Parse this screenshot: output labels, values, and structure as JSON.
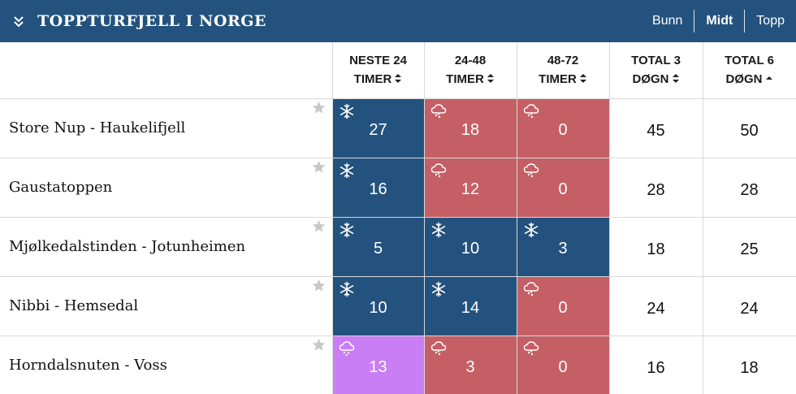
{
  "header": {
    "title": "TOPPTURFJELL I NORGE",
    "nav": [
      "Bunn",
      "Midt",
      "Topp"
    ],
    "active_nav": "Midt"
  },
  "table": {
    "columns": [
      {
        "line1": "NESTE 24",
        "line2": "TIMER",
        "sort": "both"
      },
      {
        "line1": "24-48",
        "line2": "TIMER",
        "sort": "both"
      },
      {
        "line1": "48-72",
        "line2": "TIMER",
        "sort": "both"
      },
      {
        "line1": "TOTAL 3",
        "line2": "DØGN",
        "sort": "both"
      },
      {
        "line1": "TOTAL 6",
        "line2": "DØGN",
        "sort": "asc"
      }
    ],
    "rows": [
      {
        "name": "Store Nup - Haukelifjell",
        "cells": [
          {
            "type": "snow",
            "value": "27"
          },
          {
            "type": "rain",
            "value": "18"
          },
          {
            "type": "rain",
            "value": "0"
          }
        ],
        "total3": "45",
        "total6": "50"
      },
      {
        "name": "Gaustatoppen",
        "cells": [
          {
            "type": "snow",
            "value": "16"
          },
          {
            "type": "rain",
            "value": "12"
          },
          {
            "type": "rain",
            "value": "0"
          }
        ],
        "total3": "28",
        "total6": "28"
      },
      {
        "name": "Mjølkedalstinden - Jotunheimen",
        "cells": [
          {
            "type": "snow",
            "value": "5"
          },
          {
            "type": "snow",
            "value": "10"
          },
          {
            "type": "snow",
            "value": "3"
          }
        ],
        "total3": "18",
        "total6": "25"
      },
      {
        "name": "Nibbi - Hemsedal",
        "cells": [
          {
            "type": "snow",
            "value": "10"
          },
          {
            "type": "snow",
            "value": "14"
          },
          {
            "type": "rain",
            "value": "0"
          }
        ],
        "total3": "24",
        "total6": "24"
      },
      {
        "name": "Horndalsnuten - Voss",
        "cells": [
          {
            "type": "sleet",
            "value": "13"
          },
          {
            "type": "rain",
            "value": "3"
          },
          {
            "type": "rain",
            "value": "0"
          }
        ],
        "total3": "16",
        "total6": "18"
      }
    ]
  },
  "icons": {
    "collapse": "double-chevron-down-icon",
    "favorite": "star-icon",
    "snow": "snowflake-icon",
    "rain": "rain-cloud-icon",
    "sleet": "sleet-cloud-icon",
    "sort_both": "sort-both-icon",
    "sort_asc": "sort-asc-icon"
  },
  "colors": {
    "header_bg": "#23527e",
    "snow": "#23527e",
    "rain": "#c55f66",
    "sleet": "#c97ef5",
    "star": "#c8c8c8"
  }
}
